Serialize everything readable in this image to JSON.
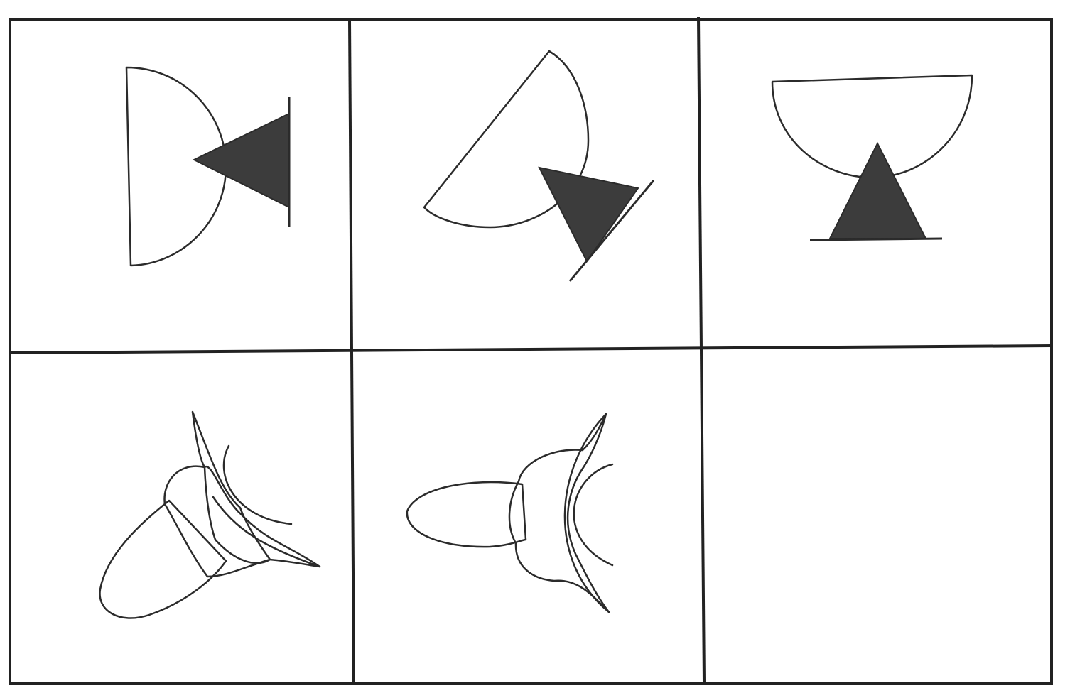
{
  "figure": {
    "rows": 2,
    "columns": 3,
    "colors": {
      "ink": "#2b2b2b",
      "solid_fill": "#3c3c3c",
      "background": "#ffffff"
    },
    "cells": [
      {
        "row": 1,
        "column": 1,
        "content": "half-disc-with-triangle",
        "pattern": "vertical-stripes"
      },
      {
        "row": 1,
        "column": 2,
        "content": "half-disc-with-triangle",
        "pattern": "vertical-stripes"
      },
      {
        "row": 1,
        "column": 3,
        "content": "half-disc-with-triangle",
        "pattern": "vertical-stripes"
      },
      {
        "row": 2,
        "column": 1,
        "content": "blob-with-horns",
        "pattern": "stripes-and-dots"
      },
      {
        "row": 2,
        "column": 2,
        "content": "blob-with-horns",
        "pattern": "stripes-and-dots"
      },
      {
        "row": 2,
        "column": 3,
        "content": "empty"
      }
    ]
  }
}
